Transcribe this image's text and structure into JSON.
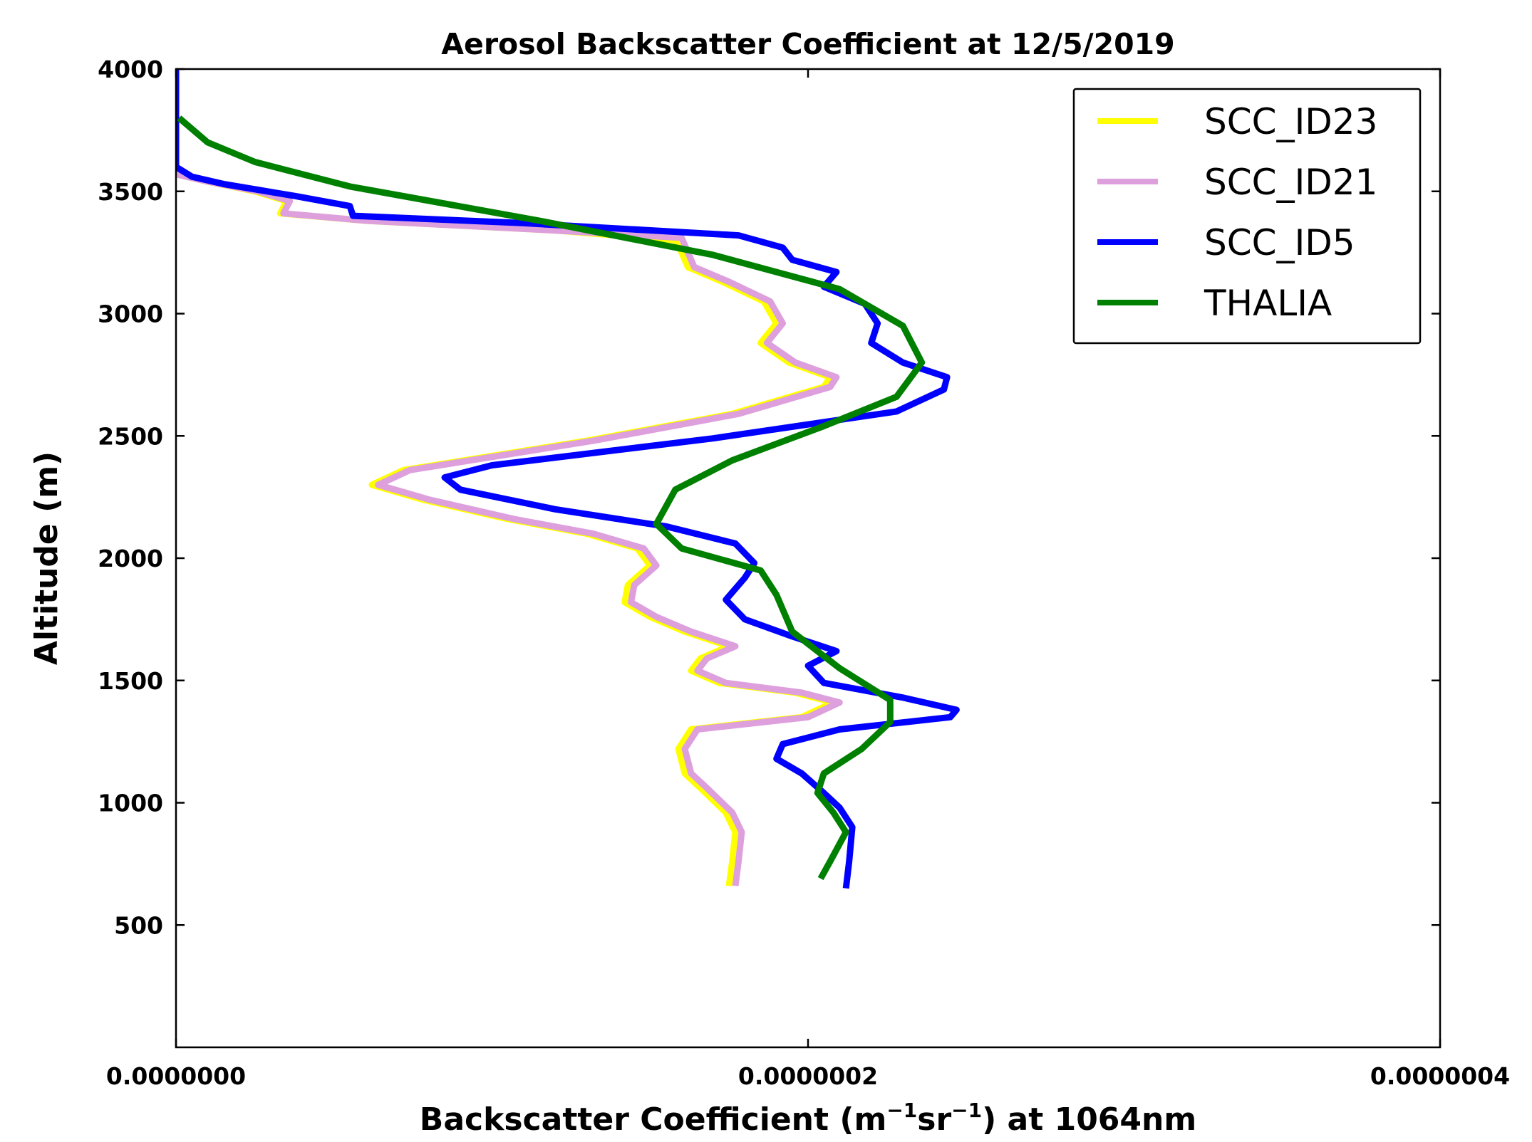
{
  "chart_data": {
    "type": "line",
    "title": "Aerosol Backscatter Coefficient at 12/5/2019",
    "xlabel_prefix": "Backscatter Coefficient (m",
    "xlabel_unit_m_exp": "−1",
    "xlabel_middle": "sr",
    "xlabel_unit_sr_exp": "−1",
    "xlabel_suffix": ") at 1064nm",
    "ylabel": "Altitude (m)",
    "xlim": [
      0,
      4e-07
    ],
    "ylim": [
      0,
      4000
    ],
    "xticks": [
      {
        "value": 0,
        "label": "0.0000000"
      },
      {
        "value": 2e-07,
        "label": "0.0000002"
      },
      {
        "value": 4e-07,
        "label": "0.0000004"
      }
    ],
    "yticks": [
      {
        "value": 500,
        "label": "500"
      },
      {
        "value": 1000,
        "label": "1000"
      },
      {
        "value": 1500,
        "label": "1500"
      },
      {
        "value": 2000,
        "label": "2000"
      },
      {
        "value": 2500,
        "label": "2500"
      },
      {
        "value": 3000,
        "label": "3000"
      },
      {
        "value": 3500,
        "label": "3500"
      },
      {
        "value": 4000,
        "label": "4000"
      }
    ],
    "grid": false,
    "legend_position": "top-right",
    "series": [
      {
        "name": "SCC_ID23",
        "color": "#ffff00",
        "points": [
          [
            1.75e-07,
            660
          ],
          [
            1.76e-07,
            760
          ],
          [
            1.77e-07,
            880
          ],
          [
            1.74e-07,
            960
          ],
          [
            1.66e-07,
            1060
          ],
          [
            1.61e-07,
            1120
          ],
          [
            1.59e-07,
            1220
          ],
          [
            1.63e-07,
            1300
          ],
          [
            1.98e-07,
            1350
          ],
          [
            2.08e-07,
            1410
          ],
          [
            1.96e-07,
            1450
          ],
          [
            1.72e-07,
            1490
          ],
          [
            1.63e-07,
            1540
          ],
          [
            1.66e-07,
            1590
          ],
          [
            1.75e-07,
            1640
          ],
          [
            1.61e-07,
            1700
          ],
          [
            1.5e-07,
            1760
          ],
          [
            1.42e-07,
            1820
          ],
          [
            1.43e-07,
            1890
          ],
          [
            1.5e-07,
            1970
          ],
          [
            1.46e-07,
            2040
          ],
          [
            1.3e-07,
            2100
          ],
          [
            1.05e-07,
            2160
          ],
          [
            7.8e-08,
            2240
          ],
          [
            6.2e-08,
            2300
          ],
          [
            7.2e-08,
            2360
          ],
          [
            1.3e-07,
            2480
          ],
          [
            1.76e-07,
            2590
          ],
          [
            2.05e-07,
            2700
          ],
          [
            2.07e-07,
            2740
          ],
          [
            1.94e-07,
            2800
          ],
          [
            1.85e-07,
            2880
          ],
          [
            1.9e-07,
            2960
          ],
          [
            1.86e-07,
            3050
          ],
          [
            1.73e-07,
            3130
          ],
          [
            1.62e-07,
            3190
          ],
          [
            1.6e-07,
            3250
          ],
          [
            1.58e-07,
            3300
          ],
          [
            1.2e-07,
            3340
          ],
          [
            6e-08,
            3380
          ],
          [
            3.3e-08,
            3410
          ],
          [
            3.5e-08,
            3460
          ],
          [
            2.5e-08,
            3500
          ],
          [
            1e-08,
            3540
          ],
          [
            0,
            3570
          ]
        ]
      },
      {
        "name": "SCC_ID21",
        "color": "#dda0dd",
        "points": [
          [
            1.77e-07,
            660
          ],
          [
            1.78e-07,
            760
          ],
          [
            1.79e-07,
            880
          ],
          [
            1.76e-07,
            960
          ],
          [
            1.68e-07,
            1060
          ],
          [
            1.63e-07,
            1120
          ],
          [
            1.61e-07,
            1220
          ],
          [
            1.65e-07,
            1300
          ],
          [
            2e-07,
            1350
          ],
          [
            2.1e-07,
            1410
          ],
          [
            1.98e-07,
            1450
          ],
          [
            1.74e-07,
            1490
          ],
          [
            1.65e-07,
            1540
          ],
          [
            1.68e-07,
            1590
          ],
          [
            1.77e-07,
            1640
          ],
          [
            1.63e-07,
            1700
          ],
          [
            1.52e-07,
            1760
          ],
          [
            1.44e-07,
            1820
          ],
          [
            1.45e-07,
            1890
          ],
          [
            1.52e-07,
            1970
          ],
          [
            1.48e-07,
            2040
          ],
          [
            1.32e-07,
            2100
          ],
          [
            1.07e-07,
            2160
          ],
          [
            8e-08,
            2240
          ],
          [
            6.4e-08,
            2300
          ],
          [
            7.4e-08,
            2360
          ],
          [
            1.32e-07,
            2480
          ],
          [
            1.78e-07,
            2590
          ],
          [
            2.07e-07,
            2700
          ],
          [
            2.09e-07,
            2740
          ],
          [
            1.96e-07,
            2800
          ],
          [
            1.87e-07,
            2880
          ],
          [
            1.92e-07,
            2960
          ],
          [
            1.88e-07,
            3050
          ],
          [
            1.75e-07,
            3130
          ],
          [
            1.64e-07,
            3190
          ],
          [
            1.62e-07,
            3250
          ],
          [
            1.6e-07,
            3310
          ],
          [
            1.2e-07,
            3340
          ],
          [
            6e-08,
            3380
          ],
          [
            3.4e-08,
            3410
          ],
          [
            3.6e-08,
            3460
          ],
          [
            2.6e-08,
            3500
          ],
          [
            1e-08,
            3540
          ],
          [
            0,
            3570
          ]
        ]
      },
      {
        "name": "SCC_ID5",
        "color": "#0000ff",
        "points": [
          [
            2.12e-07,
            650
          ],
          [
            2.13e-07,
            760
          ],
          [
            2.14e-07,
            900
          ],
          [
            2.1e-07,
            980
          ],
          [
            2.05e-07,
            1040
          ],
          [
            1.98e-07,
            1120
          ],
          [
            1.9e-07,
            1180
          ],
          [
            1.92e-07,
            1240
          ],
          [
            2.1e-07,
            1300
          ],
          [
            2.45e-07,
            1350
          ],
          [
            2.47e-07,
            1380
          ],
          [
            2.3e-07,
            1430
          ],
          [
            2.05e-07,
            1490
          ],
          [
            2e-07,
            1560
          ],
          [
            2.09e-07,
            1620
          ],
          [
            1.95e-07,
            1680
          ],
          [
            1.8e-07,
            1750
          ],
          [
            1.74e-07,
            1830
          ],
          [
            1.8e-07,
            1920
          ],
          [
            1.83e-07,
            1980
          ],
          [
            1.77e-07,
            2060
          ],
          [
            1.55e-07,
            2130
          ],
          [
            1.2e-07,
            2200
          ],
          [
            9e-08,
            2280
          ],
          [
            8.5e-08,
            2330
          ],
          [
            1e-07,
            2380
          ],
          [
            1.7e-07,
            2490
          ],
          [
            2.28e-07,
            2600
          ],
          [
            2.43e-07,
            2690
          ],
          [
            2.44e-07,
            2740
          ],
          [
            2.3e-07,
            2800
          ],
          [
            2.2e-07,
            2880
          ],
          [
            2.22e-07,
            2960
          ],
          [
            2.18e-07,
            3040
          ],
          [
            2.05e-07,
            3110
          ],
          [
            2.09e-07,
            3170
          ],
          [
            1.95e-07,
            3220
          ],
          [
            1.92e-07,
            3270
          ],
          [
            1.78e-07,
            3320
          ],
          [
            1.1e-07,
            3370
          ],
          [
            5.6e-08,
            3400
          ],
          [
            5.5e-08,
            3440
          ],
          [
            3.8e-08,
            3480
          ],
          [
            1.5e-08,
            3530
          ],
          [
            5e-09,
            3560
          ],
          [
            0,
            3600
          ],
          [
            0,
            4000
          ]
        ]
      },
      {
        "name": "THALIA",
        "color": "#008000",
        "points": [
          [
            2.04e-07,
            690
          ],
          [
            2.07e-07,
            760
          ],
          [
            2.12e-07,
            880
          ],
          [
            2.08e-07,
            960
          ],
          [
            2.03e-07,
            1040
          ],
          [
            2.05e-07,
            1120
          ],
          [
            2.17e-07,
            1220
          ],
          [
            2.26e-07,
            1330
          ],
          [
            2.26e-07,
            1420
          ],
          [
            2.1e-07,
            1550
          ],
          [
            1.95e-07,
            1700
          ],
          [
            1.9e-07,
            1850
          ],
          [
            1.85e-07,
            1950
          ],
          [
            1.6e-07,
            2040
          ],
          [
            1.52e-07,
            2140
          ],
          [
            1.58e-07,
            2280
          ],
          [
            1.76e-07,
            2400
          ],
          [
            2.05e-07,
            2540
          ],
          [
            2.28e-07,
            2660
          ],
          [
            2.36e-07,
            2800
          ],
          [
            2.3e-07,
            2950
          ],
          [
            2.1e-07,
            3100
          ],
          [
            1.7e-07,
            3240
          ],
          [
            1.15e-07,
            3380
          ],
          [
            5.5e-08,
            3520
          ],
          [
            2.5e-08,
            3620
          ],
          [
            1e-08,
            3700
          ],
          [
            1e-09,
            3800
          ]
        ]
      }
    ]
  }
}
